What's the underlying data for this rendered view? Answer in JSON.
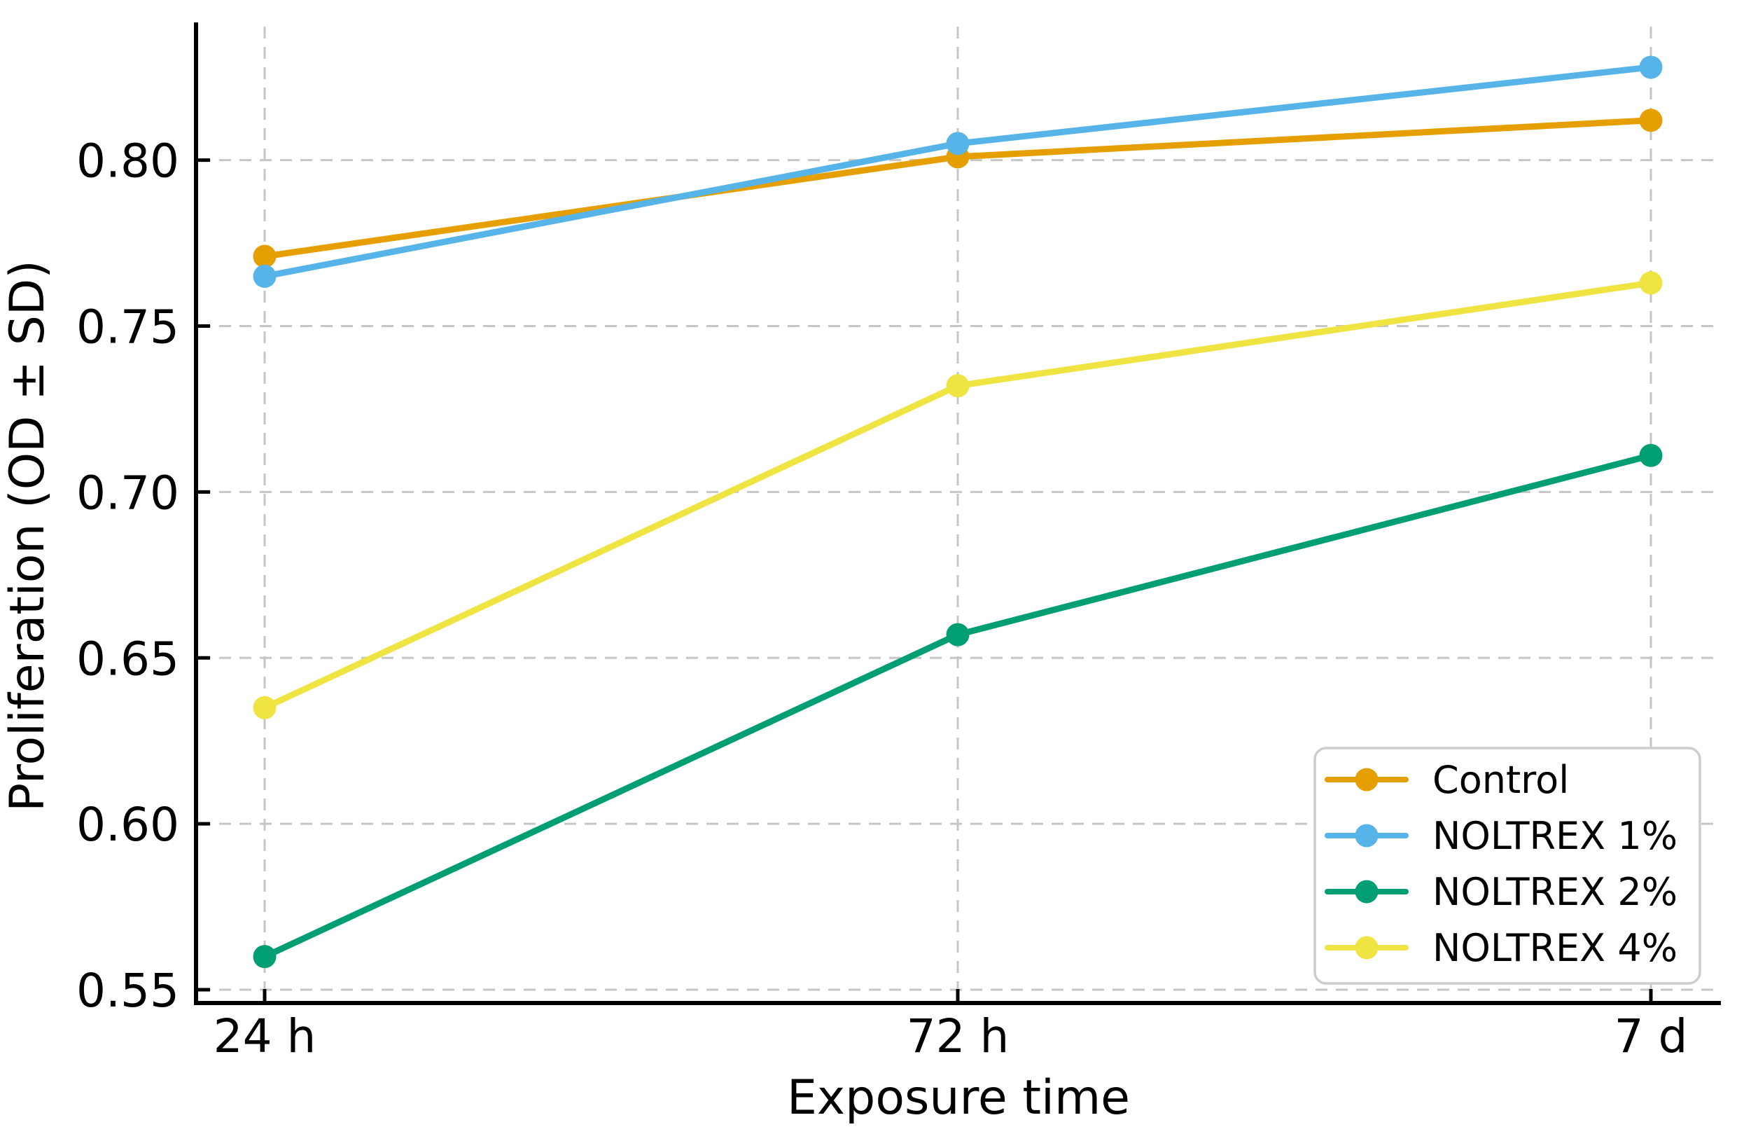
{
  "figure": {
    "background": "#ffffff"
  },
  "chart_data": {
    "type": "line",
    "title": "",
    "xlabel": "Exposure time",
    "ylabel": "Proliferation (OD ± SD)",
    "categories": [
      "24 h",
      "72 h",
      "7 d"
    ],
    "series": [
      {
        "name": "Control",
        "color": "#E69F00",
        "values": [
          0.771,
          0.801,
          0.812
        ]
      },
      {
        "name": "NOLTREX 1%",
        "color": "#56B4E9",
        "values": [
          0.765,
          0.805,
          0.828
        ]
      },
      {
        "name": "NOLTREX 2%",
        "color": "#009E73",
        "values": [
          0.56,
          0.657,
          0.711
        ]
      },
      {
        "name": "NOLTREX 4%",
        "color": "#F0E442",
        "values": [
          0.635,
          0.732,
          0.763
        ]
      }
    ],
    "yticks": [
      0.55,
      0.6,
      0.65,
      0.7,
      0.75,
      0.8
    ],
    "ylim": [
      0.546,
      0.8415
    ],
    "grid": {
      "show": true,
      "style": "dashed",
      "color": "#c6c6c6",
      "axes": "both"
    },
    "legend": {
      "position": "lower-right",
      "entries": [
        "Control",
        "NOLTREX 1%",
        "NOLTREX 2%",
        "NOLTREX 4%"
      ]
    }
  }
}
